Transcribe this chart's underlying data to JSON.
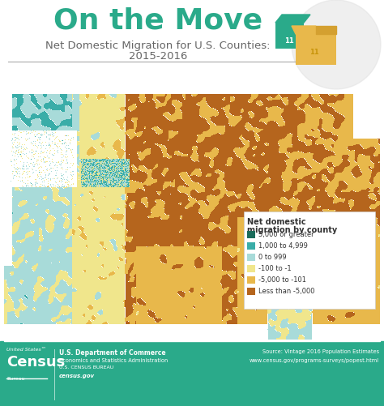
{
  "title": "On the Move",
  "subtitle_line1": "Net Domestic Migration for U.S. Counties:",
  "subtitle_line2": "2015-2016",
  "title_color": "#2aaa8a",
  "subtitle_color": "#666666",
  "bg_color": "#ffffff",
  "footer_bg": "#2aaa8a",
  "footer_text_color": "#ffffff",
  "legend_title_line1": "Net domestic",
  "legend_title_line2": "migration by county",
  "legend_items": [
    {
      "label": "5,000 or greater",
      "color": "#1a6b5a"
    },
    {
      "label": "1,000 to 4,999",
      "color": "#3aada8"
    },
    {
      "label": "0 to 999",
      "color": "#a8dbd9"
    },
    {
      "label": "-100 to -1",
      "color": "#f0e68c"
    },
    {
      "label": "-5,000 to -101",
      "color": "#e8b84b"
    },
    {
      "label": "Less than -5,000",
      "color": "#b5651d"
    }
  ],
  "divider_color": "#aaaaaa",
  "circle_color": "#e0e0e0",
  "box_teal_dark": "#2aaa8a",
  "box_teal_light": "#a8dbd9",
  "box_gold": "#e8b84b",
  "title_fontsize": 26,
  "subtitle_fontsize": 9.5
}
